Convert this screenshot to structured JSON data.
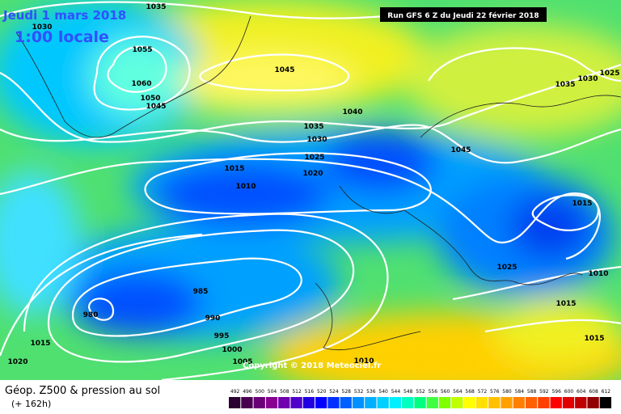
{
  "header": {
    "date": "Jeudi 1 mars 2018",
    "time": "1:00 locale",
    "run": "Run GFS 6 Z du Jeudi 22 février 2018"
  },
  "copyright": "Copyright © 2018 Meteociel.fr",
  "footer": {
    "title": "Géop. Z500 & pression au sol",
    "lead": "(+ 162h)"
  },
  "isobar_labels": [
    "1035",
    "1030",
    "1055",
    "1060",
    "1050",
    "1045",
    "1045",
    "1040",
    "1035",
    "1030",
    "1025",
    "1020",
    "1015",
    "1010",
    "1045",
    "1035",
    "1030",
    "1025",
    "1015",
    "1025",
    "1010",
    "1015",
    "1015",
    "985",
    "980",
    "990",
    "995",
    "1000",
    "1005",
    "1010",
    "1015",
    "1020"
  ],
  "colorbar": [
    {
      "label": 492,
      "color": "#2a0030"
    },
    {
      "label": 496,
      "color": "#4a0050"
    },
    {
      "label": 500,
      "color": "#6a0078"
    },
    {
      "label": 504,
      "color": "#880090"
    },
    {
      "label": 508,
      "color": "#7000b0"
    },
    {
      "label": 512,
      "color": "#5000c8"
    },
    {
      "label": 516,
      "color": "#2000e0"
    },
    {
      "label": 520,
      "color": "#0000ff"
    },
    {
      "label": 524,
      "color": "#0030ff"
    },
    {
      "label": 528,
      "color": "#0060ff"
    },
    {
      "label": 532,
      "color": "#0090ff"
    },
    {
      "label": 536,
      "color": "#00b0ff"
    },
    {
      "label": 540,
      "color": "#00d0ff"
    },
    {
      "label": 544,
      "color": "#00f0ff"
    },
    {
      "label": 548,
      "color": "#00ffc0"
    },
    {
      "label": 552,
      "color": "#00ff80"
    },
    {
      "label": 556,
      "color": "#40ff40"
    },
    {
      "label": 560,
      "color": "#80ff00"
    },
    {
      "label": 564,
      "color": "#c0ff00"
    },
    {
      "label": 568,
      "color": "#ffff00"
    },
    {
      "label": 572,
      "color": "#ffe000"
    },
    {
      "label": 576,
      "color": "#ffc000"
    },
    {
      "label": 580,
      "color": "#ffa000"
    },
    {
      "label": 584,
      "color": "#ff8000"
    },
    {
      "label": 588,
      "color": "#ff6000"
    },
    {
      "label": 592,
      "color": "#ff4000"
    },
    {
      "label": 596,
      "color": "#ff0000"
    },
    {
      "label": 600,
      "color": "#e00000"
    },
    {
      "label": 604,
      "color": "#c00000"
    },
    {
      "label": 608,
      "color": "#900000"
    },
    {
      "label": 612,
      "color": "#000000"
    }
  ]
}
